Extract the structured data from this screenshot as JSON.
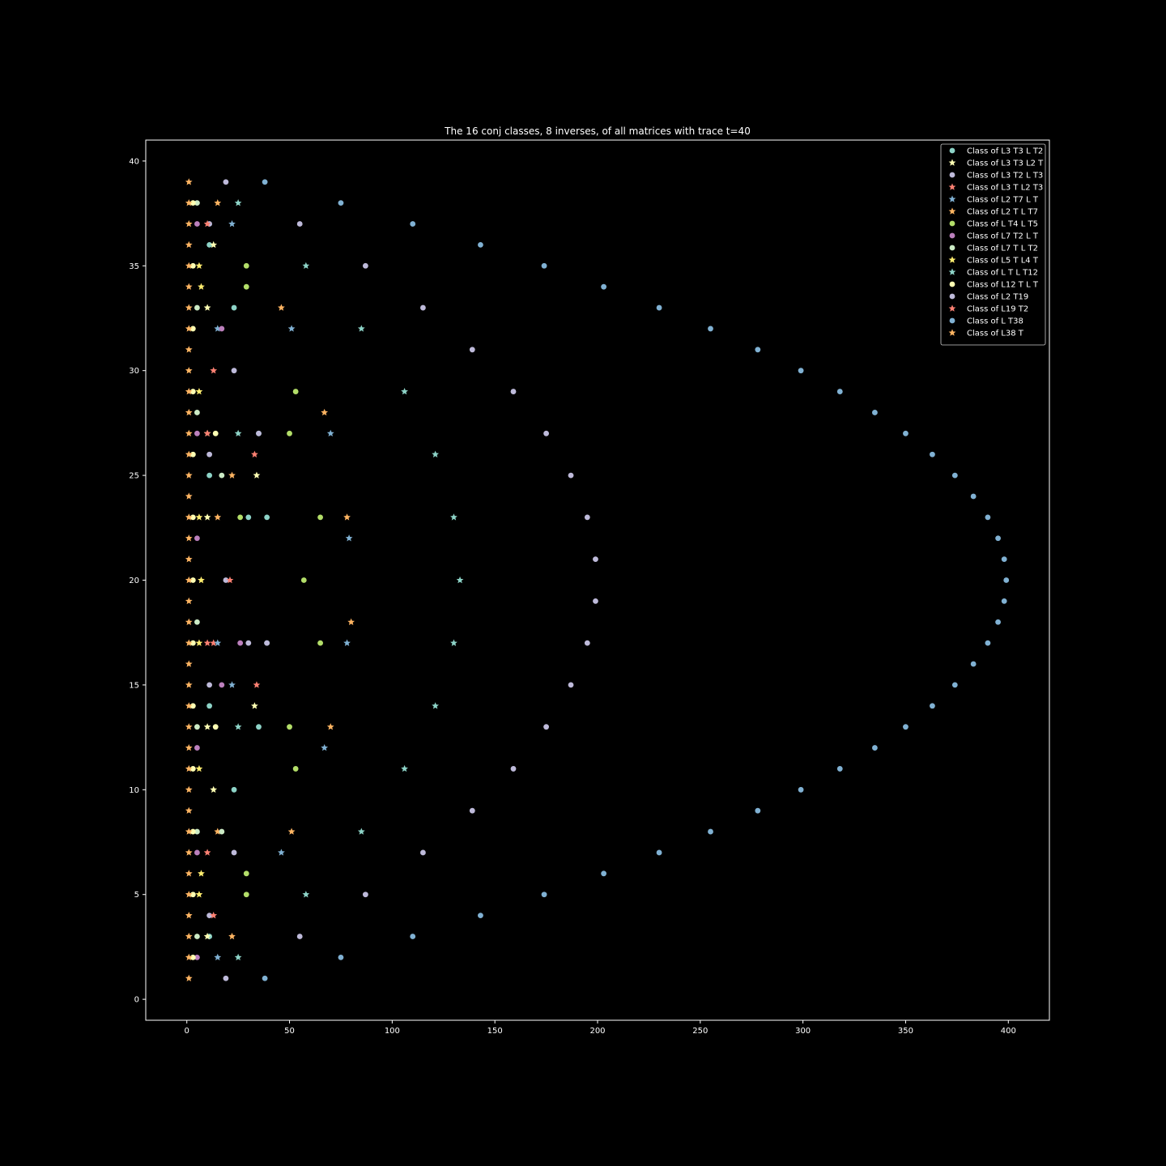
{
  "chart_data": {
    "type": "scatter",
    "title": "The 16 conj classes, 8 inverses,  of all matrices with trace t=40",
    "xlabel": "",
    "ylabel": "",
    "xlim": [
      -20,
      420
    ],
    "ylim": [
      -1,
      41
    ],
    "x_ticks": [
      0,
      50,
      100,
      150,
      200,
      250,
      300,
      350,
      400
    ],
    "y_ticks": [
      0,
      5,
      10,
      15,
      20,
      25,
      30,
      35,
      40
    ],
    "grid": false,
    "legend_position": "top-right",
    "series": [
      {
        "name": "Class of L3 T3 L T2",
        "marker": "circle",
        "color": "#8dd3c7",
        "points": [
          [
            23,
            10
          ],
          [
            11,
            14
          ],
          [
            35,
            13
          ],
          [
            11,
            25
          ],
          [
            23,
            33
          ],
          [
            11,
            36
          ],
          [
            35,
            27
          ],
          [
            39,
            17
          ],
          [
            39,
            23
          ],
          [
            30,
            23
          ],
          [
            11,
            3
          ]
        ]
      },
      {
        "name": "Class of L3 T3 L2 T",
        "marker": "star",
        "color": "#feffb3",
        "points": [
          [
            13,
            10
          ],
          [
            33,
            14
          ],
          [
            10,
            13
          ],
          [
            34,
            25
          ],
          [
            10,
            33
          ],
          [
            13,
            36
          ],
          [
            10,
            23
          ],
          [
            10,
            27
          ],
          [
            10,
            3
          ]
        ]
      },
      {
        "name": "Class of L3 T2 L T3",
        "marker": "circle",
        "color": "#bebada",
        "points": [
          [
            19,
            1
          ],
          [
            55,
            3
          ],
          [
            11,
            4
          ],
          [
            87,
            5
          ],
          [
            23,
            7
          ],
          [
            115,
            7
          ],
          [
            139,
            9
          ],
          [
            159,
            11
          ],
          [
            175,
            13
          ],
          [
            11,
            15
          ],
          [
            187,
            15
          ],
          [
            30,
            17
          ],
          [
            39,
            17
          ],
          [
            195,
            17
          ],
          [
            199,
            19
          ],
          [
            19,
            20
          ],
          [
            199,
            21
          ],
          [
            195,
            23
          ],
          [
            11,
            26
          ],
          [
            187,
            25
          ],
          [
            35,
            27
          ],
          [
            175,
            27
          ],
          [
            23,
            30
          ],
          [
            159,
            29
          ],
          [
            139,
            31
          ],
          [
            115,
            33
          ],
          [
            87,
            35
          ],
          [
            11,
            37
          ],
          [
            55,
            37
          ],
          [
            19,
            39
          ]
        ]
      },
      {
        "name": "Class of L3 T L2 T3",
        "marker": "star",
        "color": "#fb8072",
        "points": [
          [
            13,
            4
          ],
          [
            10,
            7
          ],
          [
            34,
            15
          ],
          [
            10,
            17
          ],
          [
            13,
            17
          ],
          [
            21,
            20
          ],
          [
            33,
            26
          ],
          [
            10,
            27
          ],
          [
            13,
            30
          ],
          [
            10,
            37
          ]
        ]
      },
      {
        "name": "Class of L2 T7 L T",
        "marker": "star",
        "color": "#80b1d3",
        "points": [
          [
            15,
            2
          ],
          [
            46,
            7
          ],
          [
            67,
            12
          ],
          [
            22,
            15
          ],
          [
            15,
            17
          ],
          [
            78,
            17
          ],
          [
            79,
            22
          ],
          [
            70,
            27
          ],
          [
            51,
            32
          ],
          [
            15,
            32
          ],
          [
            22,
            37
          ]
        ]
      },
      {
        "name": "Class of L2 T L T7",
        "marker": "star",
        "color": "#fdb462",
        "points": [
          [
            22,
            3
          ],
          [
            15,
            8
          ],
          [
            51,
            8
          ],
          [
            70,
            13
          ],
          [
            80,
            18
          ],
          [
            78,
            23
          ],
          [
            15,
            23
          ],
          [
            22,
            25
          ],
          [
            67,
            28
          ],
          [
            46,
            33
          ],
          [
            15,
            38
          ]
        ]
      },
      {
        "name": "Class of L T4 L T5",
        "marker": "circle",
        "color": "#b3de69",
        "points": [
          [
            29,
            5
          ],
          [
            29,
            6
          ],
          [
            53,
            11
          ],
          [
            50,
            13
          ],
          [
            65,
            17
          ],
          [
            57,
            20
          ],
          [
            65,
            23
          ],
          [
            26,
            23
          ],
          [
            50,
            27
          ],
          [
            53,
            29
          ],
          [
            29,
            34
          ],
          [
            29,
            35
          ]
        ]
      },
      {
        "name": "Class of L7 T2 L T",
        "marker": "circle",
        "color": "#bc80bd",
        "points": [
          [
            5,
            2
          ],
          [
            5,
            7
          ],
          [
            5,
            12
          ],
          [
            17,
            15
          ],
          [
            26,
            17
          ],
          [
            5,
            22
          ],
          [
            5,
            27
          ],
          [
            17,
            32
          ],
          [
            5,
            37
          ]
        ]
      },
      {
        "name": "Class of L7 T L T2",
        "marker": "circle",
        "color": "#ccebc5",
        "points": [
          [
            5,
            3
          ],
          [
            5,
            8
          ],
          [
            17,
            8
          ],
          [
            5,
            13
          ],
          [
            5,
            18
          ],
          [
            17,
            25
          ],
          [
            5,
            28
          ],
          [
            5,
            33
          ],
          [
            5,
            38
          ]
        ]
      },
      {
        "name": "Class of L5 T L4 T",
        "marker": "star",
        "color": "#ffed6f",
        "points": [
          [
            6,
            5
          ],
          [
            7,
            6
          ],
          [
            6,
            11
          ],
          [
            6,
            17
          ],
          [
            7,
            20
          ],
          [
            6,
            23
          ],
          [
            6,
            29
          ],
          [
            7,
            34
          ],
          [
            6,
            35
          ]
        ]
      },
      {
        "name": "Class of L T L T12",
        "marker": "star",
        "color": "#8dd3c7",
        "points": [
          [
            25,
            2
          ],
          [
            58,
            5
          ],
          [
            85,
            8
          ],
          [
            106,
            11
          ],
          [
            25,
            13
          ],
          [
            121,
            14
          ],
          [
            130,
            17
          ],
          [
            133,
            20
          ],
          [
            130,
            23
          ],
          [
            121,
            26
          ],
          [
            25,
            27
          ],
          [
            106,
            29
          ],
          [
            85,
            32
          ],
          [
            58,
            35
          ],
          [
            25,
            38
          ]
        ]
      },
      {
        "name": "Class of L12 T L T",
        "marker": "circle",
        "color": "#feffb3",
        "points": [
          [
            3,
            2
          ],
          [
            3,
            5
          ],
          [
            3,
            8
          ],
          [
            3,
            11
          ],
          [
            14,
            13
          ],
          [
            3,
            14
          ],
          [
            3,
            17
          ],
          [
            3,
            20
          ],
          [
            3,
            23
          ],
          [
            3,
            26
          ],
          [
            14,
            27
          ],
          [
            3,
            29
          ],
          [
            3,
            32
          ],
          [
            3,
            35
          ],
          [
            3,
            38
          ]
        ]
      },
      {
        "name": "Class of L2 T19",
        "marker": "circle",
        "color": "#bebada",
        "points": []
      },
      {
        "name": "Class of L19 T2",
        "marker": "star",
        "color": "#fb8072",
        "points": []
      },
      {
        "name": "Class of L T38",
        "marker": "circle",
        "color": "#80b1d3",
        "points": [
          [
            38,
            1
          ],
          [
            75,
            2
          ],
          [
            110,
            3
          ],
          [
            143,
            4
          ],
          [
            174,
            5
          ],
          [
            203,
            6
          ],
          [
            230,
            7
          ],
          [
            255,
            8
          ],
          [
            278,
            9
          ],
          [
            299,
            10
          ],
          [
            318,
            11
          ],
          [
            335,
            12
          ],
          [
            350,
            13
          ],
          [
            363,
            14
          ],
          [
            374,
            15
          ],
          [
            383,
            16
          ],
          [
            390,
            17
          ],
          [
            395,
            18
          ],
          [
            398,
            19
          ],
          [
            399,
            20
          ],
          [
            398,
            21
          ],
          [
            395,
            22
          ],
          [
            390,
            23
          ],
          [
            383,
            24
          ],
          [
            374,
            25
          ],
          [
            363,
            26
          ],
          [
            350,
            27
          ],
          [
            335,
            28
          ],
          [
            318,
            29
          ],
          [
            299,
            30
          ],
          [
            278,
            31
          ],
          [
            255,
            32
          ],
          [
            230,
            33
          ],
          [
            203,
            34
          ],
          [
            174,
            35
          ],
          [
            143,
            36
          ],
          [
            110,
            37
          ],
          [
            75,
            38
          ],
          [
            38,
            39
          ]
        ]
      },
      {
        "name": "Class of L38 T",
        "marker": "star",
        "color": "#fdb462",
        "points": [
          [
            1,
            1
          ],
          [
            1,
            2
          ],
          [
            1,
            3
          ],
          [
            1,
            4
          ],
          [
            1,
            5
          ],
          [
            1,
            6
          ],
          [
            1,
            7
          ],
          [
            1,
            8
          ],
          [
            1,
            9
          ],
          [
            1,
            10
          ],
          [
            1,
            11
          ],
          [
            1,
            12
          ],
          [
            1,
            13
          ],
          [
            1,
            14
          ],
          [
            1,
            15
          ],
          [
            1,
            16
          ],
          [
            1,
            17
          ],
          [
            1,
            18
          ],
          [
            1,
            19
          ],
          [
            1,
            20
          ],
          [
            1,
            21
          ],
          [
            1,
            22
          ],
          [
            1,
            23
          ],
          [
            1,
            24
          ],
          [
            1,
            25
          ],
          [
            1,
            26
          ],
          [
            1,
            27
          ],
          [
            1,
            28
          ],
          [
            1,
            29
          ],
          [
            1,
            30
          ],
          [
            1,
            31
          ],
          [
            1,
            32
          ],
          [
            1,
            33
          ],
          [
            1,
            34
          ],
          [
            1,
            35
          ],
          [
            1,
            36
          ],
          [
            1,
            37
          ],
          [
            1,
            38
          ],
          [
            1,
            39
          ]
        ]
      }
    ]
  }
}
